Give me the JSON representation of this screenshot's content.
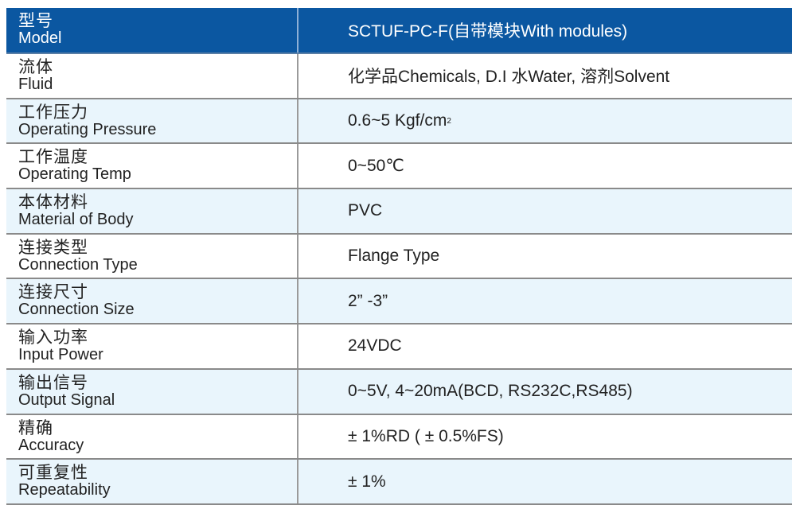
{
  "header": {
    "label_cn": "型号",
    "label_en": "Model",
    "value": "SCTUF-PC-F(自带模块With modules)"
  },
  "rows": [
    {
      "label_cn": "流体",
      "label_en": "Fluid",
      "value": "化学品Chemicals, D.I 水Water, 溶剂Solvent"
    },
    {
      "label_cn": "工作压力",
      "label_en": "Operating Pressure",
      "value": "0.6~5 Kgf/cm",
      "sup": "2"
    },
    {
      "label_cn": "工作温度",
      "label_en": "Operating Temp",
      "value": "0~50℃"
    },
    {
      "label_cn": "本体材料",
      "label_en": "Material of Body",
      "value": "PVC"
    },
    {
      "label_cn": "连接类型",
      "label_en": "Connection Type",
      "value": "Flange Type"
    },
    {
      "label_cn": "连接尺寸",
      "label_en": "Connection Size",
      "value": "2” -3”"
    },
    {
      "label_cn": "输入功率",
      "label_en": "Input Power",
      "value": "24VDC"
    },
    {
      "label_cn": "输出信号",
      "label_en": "Output Signal",
      "value": "0~5V, 4~20mA(BCD, RS232C,RS485)"
    },
    {
      "label_cn": "精确",
      "label_en": "Accuracy",
      "value": "± 1%RD ( ± 0.5%FS)"
    },
    {
      "label_cn": "可重复性",
      "label_en": "Repeatability",
      "value": "± 1%"
    }
  ],
  "colors": {
    "header_bg": "#0b57a1",
    "alt_row_bg": "#e9f5fc"
  }
}
